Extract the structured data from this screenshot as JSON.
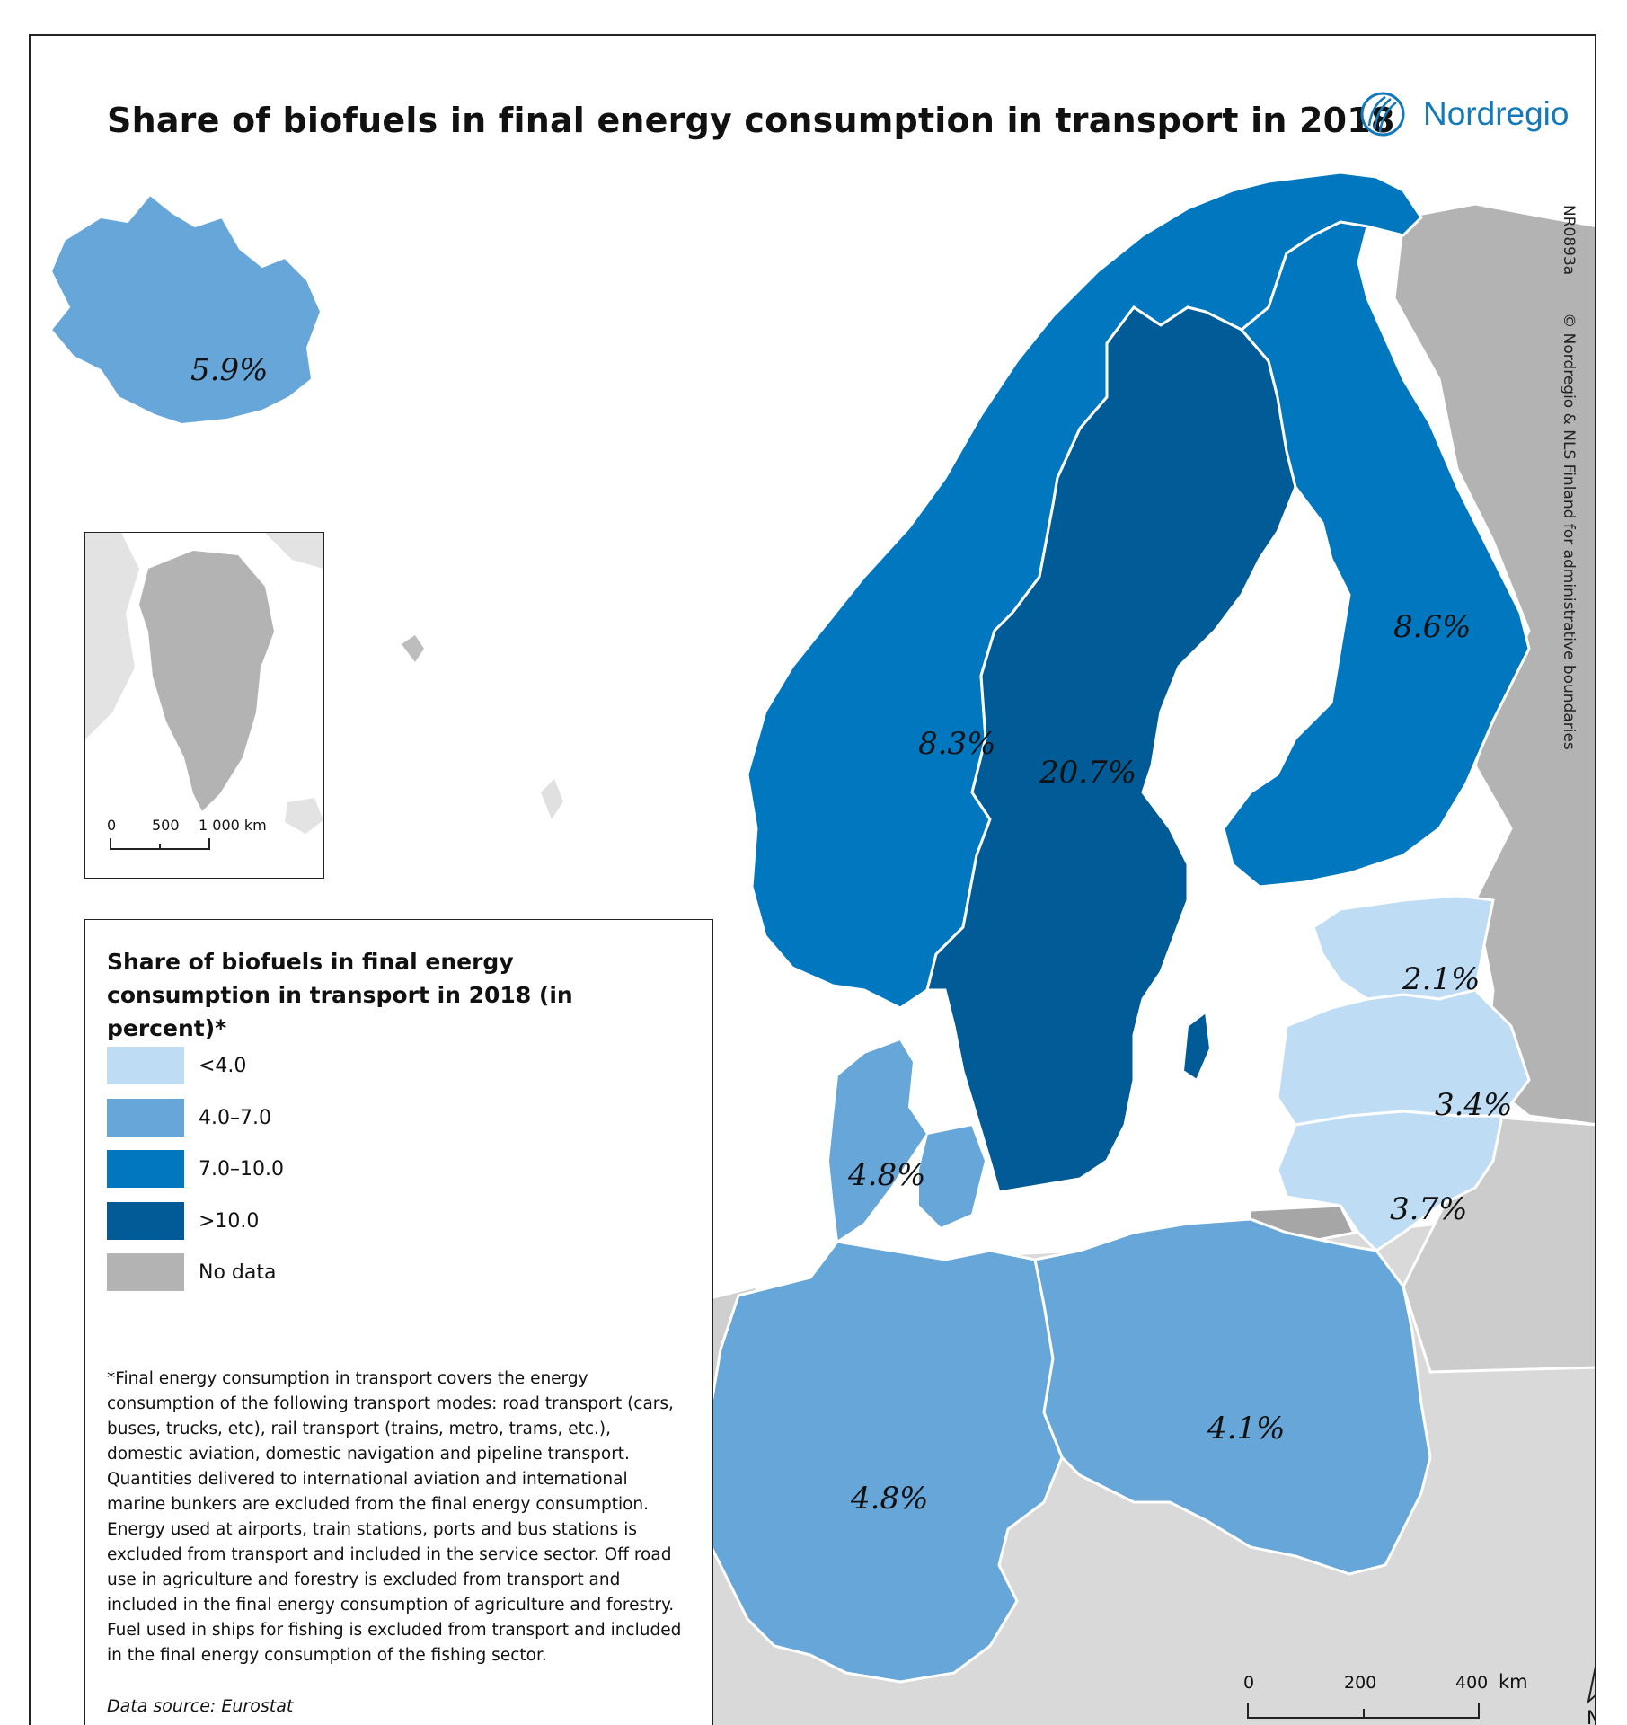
{
  "map": {
    "title": "Share of biofuels in final energy consumption in transport in 2018",
    "logo_text": "Nordregio",
    "map_id": "NR0893a",
    "copyright": "© Nordregio & NLS Finland for administrative boundaries",
    "regions": [
      {
        "name": "Iceland",
        "value": "5.9%",
        "class": "4.0–7.0"
      },
      {
        "name": "Norway",
        "value": "8.3%",
        "class": "7.0–10.0"
      },
      {
        "name": "Sweden",
        "value": "20.7%",
        "class": ">10.0"
      },
      {
        "name": "Finland",
        "value": "8.6%",
        "class": "7.0–10.0"
      },
      {
        "name": "Estonia",
        "value": "2.1%",
        "class": "<4.0"
      },
      {
        "name": "Latvia",
        "value": "3.4%",
        "class": "<4.0"
      },
      {
        "name": "Lithuania",
        "value": "3.7%",
        "class": "<4.0"
      },
      {
        "name": "Denmark",
        "value": "4.8%",
        "class": "4.0–7.0"
      },
      {
        "name": "Germany",
        "value": "4.8%",
        "class": "4.0–7.0"
      },
      {
        "name": "Poland",
        "value": "4.1%",
        "class": "4.0–7.0"
      }
    ],
    "inset": {
      "scale_labels": [
        "0",
        "500",
        "1 000 km"
      ]
    },
    "scale": {
      "labels": [
        "0",
        "200",
        "400",
        "km"
      ]
    },
    "north_label": "N"
  },
  "legend": {
    "title": "Share of biofuels in final energy consumption in transport in 2018 (in percent)*",
    "classes": [
      {
        "label": "<4.0",
        "color": "#bfdcf5"
      },
      {
        "label": "4.0–7.0",
        "color": "#66a6d9"
      },
      {
        "label": "7.0–10.0",
        "color": "#0077bf"
      },
      {
        "label": ">10.0",
        "color": "#005b96"
      },
      {
        "label": "No data",
        "color": "#b3b3b3"
      }
    ],
    "note": "*Final energy consumption in transport covers the energy consumption of the following transport modes: road transport (cars, buses, trucks, etc), rail transport (trains, metro, trams, etc.), domestic aviation, domestic navigation and pipeline transport. Quantities delivered to international aviation and international marine bunkers are excluded from the final energy consumption. Energy used at airports, train stations, ports and bus stations is excluded from transport and included in the service sector. Off road use in agriculture and forestry is excluded from transport and included in the final energy consumption of agriculture and forestry. Fuel used in ships for fishing is excluded from transport and included in the final energy consumption of the fishing sector.",
    "source": "Data source: Eurostat"
  }
}
